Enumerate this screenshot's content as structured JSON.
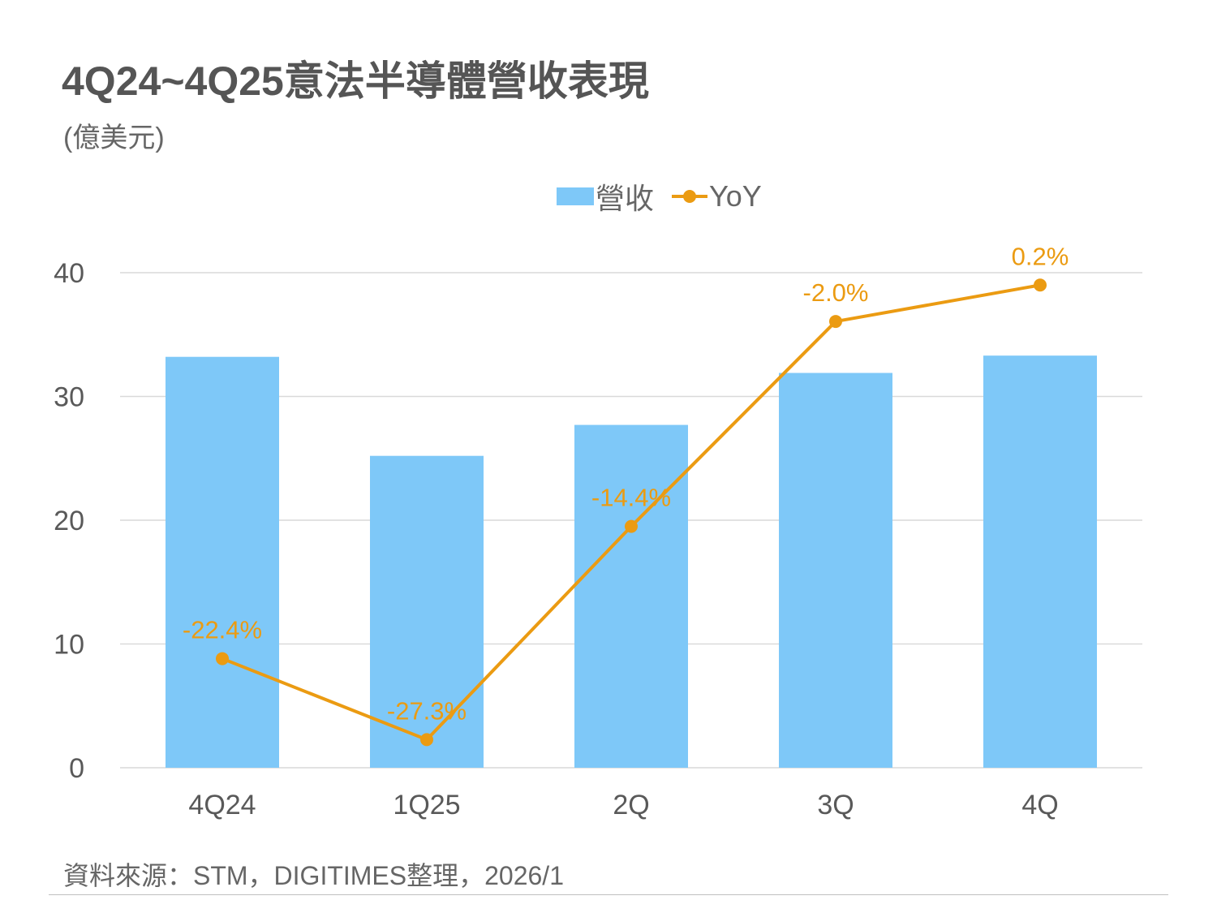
{
  "title": "4Q24~4Q25意法半導體營收表現",
  "unit": "(億美元)",
  "legend": {
    "bar_label": "營收",
    "line_label": "YoY"
  },
  "colors": {
    "bar": "#7ec8f8",
    "line": "#eb9b12",
    "text": "#595959",
    "grid": "#d9d9d9"
  },
  "chart_data": {
    "type": "bar",
    "categories": [
      "4Q24",
      "1Q25",
      "2Q",
      "3Q",
      "4Q"
    ],
    "series": [
      {
        "name": "營收",
        "type": "bar",
        "axis": "left",
        "values": [
          33.2,
          25.2,
          27.7,
          31.9,
          33.3
        ]
      },
      {
        "name": "YoY",
        "type": "line",
        "axis": "secondary (not shown)",
        "values": [
          -22.4,
          -27.3,
          -14.4,
          -2.0,
          0.2
        ],
        "labels": [
          "-22.4%",
          "-27.3%",
          "-14.4%",
          "-2.0%",
          "0.2%"
        ]
      }
    ],
    "yticks": [
      "0",
      "10",
      "20",
      "30",
      "40"
    ],
    "ylim": [
      0,
      40
    ],
    "grid": true,
    "legend_position": "top-center"
  },
  "source": "資料來源：STM，DIGITIMES整理，2026/1"
}
